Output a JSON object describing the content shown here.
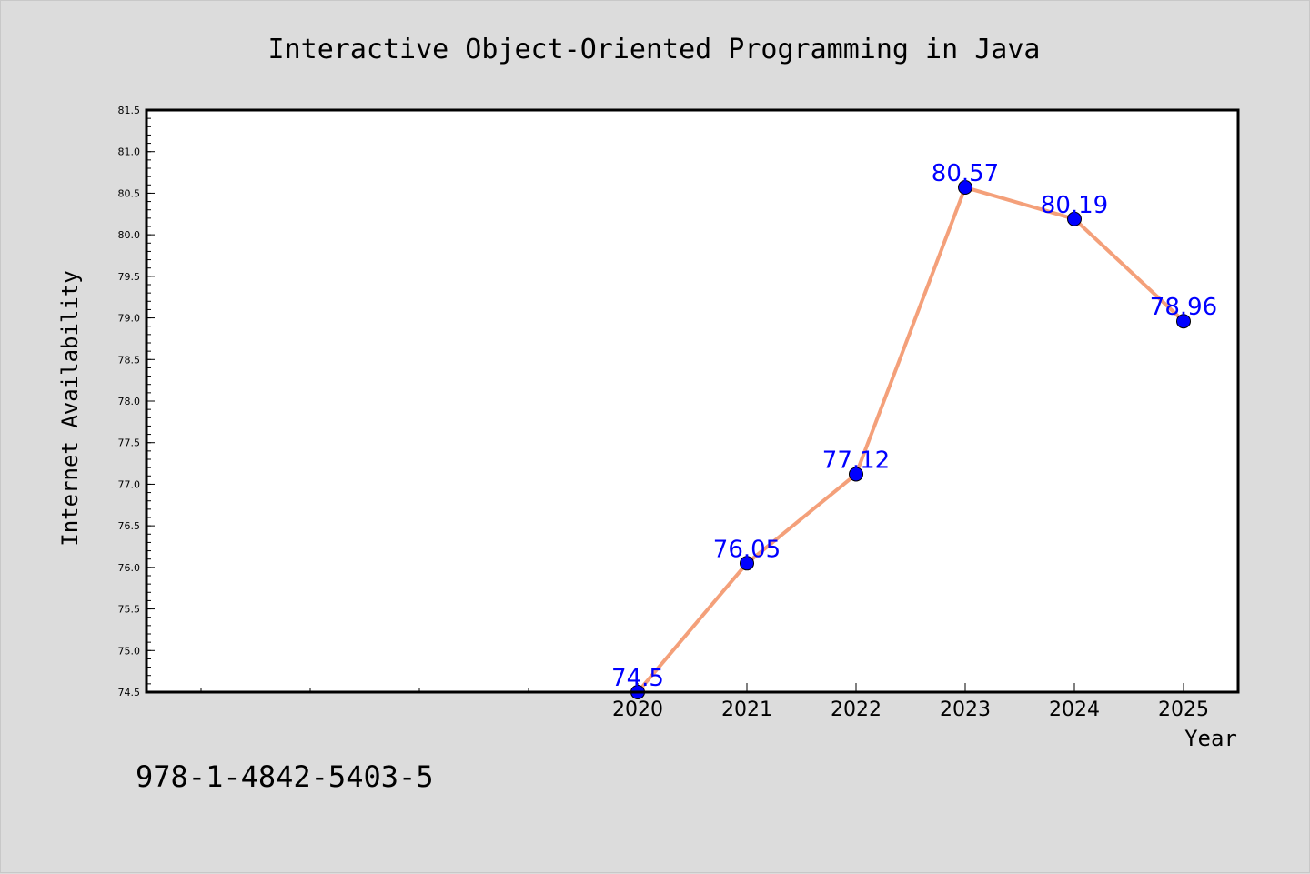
{
  "chart_data": {
    "type": "line",
    "title": "Interactive Object-Oriented Programming in Java",
    "xlabel": "Year",
    "ylabel": "Internet Availability",
    "x": [
      2020,
      2021,
      2022,
      2023,
      2024,
      2025
    ],
    "x_tick_labels": [
      "2020",
      "2021",
      "2022",
      "2023",
      "2024",
      "2025"
    ],
    "xlim": [
      2015.5,
      2025.5
    ],
    "ylim": [
      74.5,
      81.5
    ],
    "y_tick_labels": [
      "74.5",
      "75.0",
      "75.5",
      "76.0",
      "76.5",
      "77.0",
      "77.5",
      "78.0",
      "78.5",
      "79.0",
      "79.5",
      "80.0",
      "80.5",
      "81.0",
      "81.5"
    ],
    "series": [
      {
        "values": [
          74.5,
          76.05,
          77.12,
          80.57,
          80.19,
          78.96
        ],
        "data_labels": [
          "74.5",
          "76.05",
          "77.12",
          "80.57",
          "80.19",
          "78.96"
        ],
        "line_color": "#f4a07a",
        "marker_color": "#0000ff"
      }
    ],
    "grid": false,
    "plot_background": "#ffffff",
    "figure_background": "#dcdcdc"
  },
  "footnote": "978-1-4842-5403-5"
}
